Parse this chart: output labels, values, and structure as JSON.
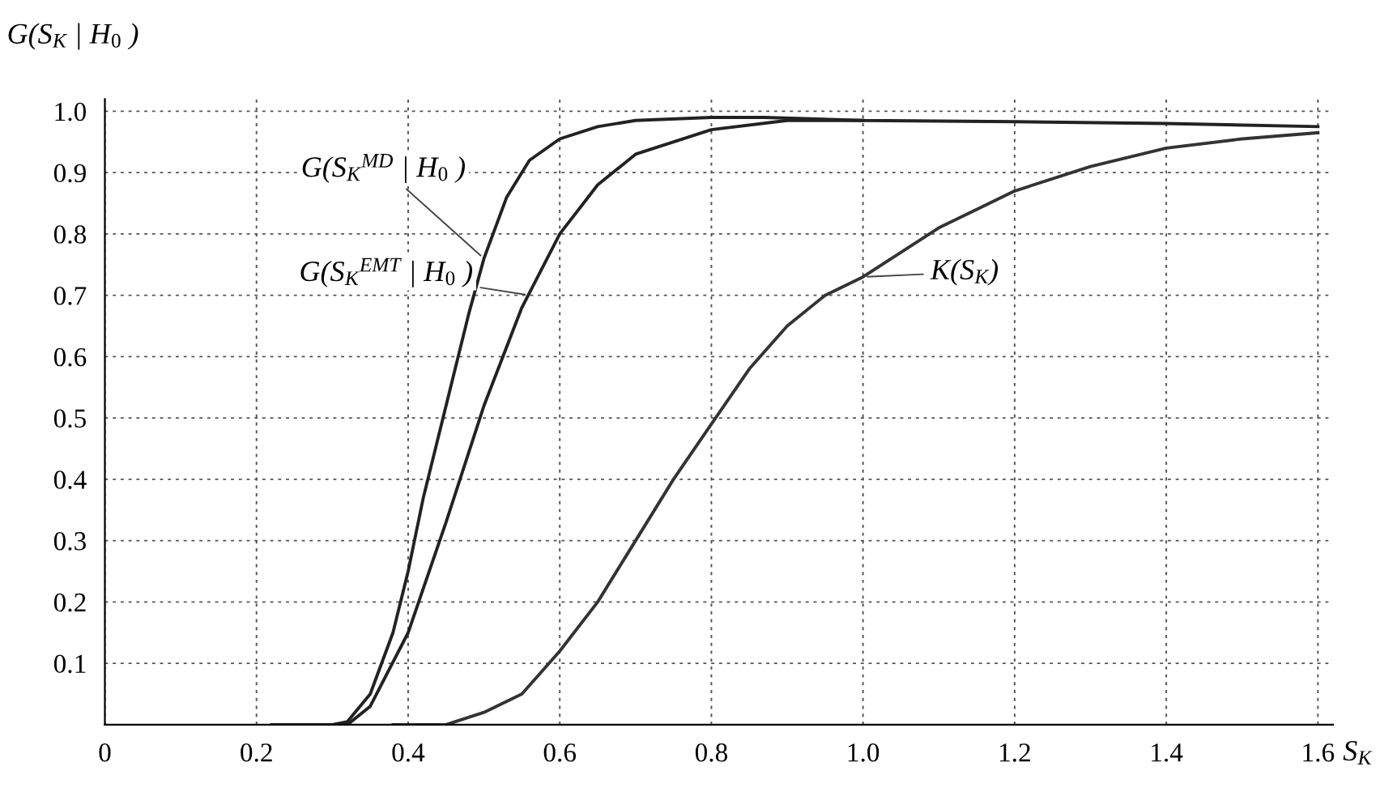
{
  "chart_data": {
    "type": "line",
    "xlabel": "S$_{K}$",
    "ylabel": "G(S$_{K}$ | H$_{0}$ )",
    "xlim": [
      0,
      1.62
    ],
    "ylim": [
      0,
      1.02
    ],
    "xticks": [
      0,
      0.2,
      0.4,
      0.6,
      0.8,
      {
        "value": 1.0,
        "label": "1.0"
      },
      1.2,
      1.4,
      1.6
    ],
    "yticks": [
      0.1,
      0.2,
      0.3,
      0.4,
      0.5,
      0.6,
      0.7,
      0.8,
      0.9,
      {
        "value": 1.0,
        "label": "1.0"
      }
    ],
    "grid": true,
    "line_style": "solid",
    "marker": "none",
    "series": [
      {
        "color": "#222222",
        "x": [
          0.22,
          0.3,
          0.32,
          0.35,
          0.38,
          0.4,
          0.42,
          0.45,
          0.48,
          0.5,
          0.53,
          0.56,
          0.6,
          0.65,
          0.7,
          0.8,
          0.87,
          1.0,
          1.2,
          1.4,
          1.6
        ],
        "values": [
          0,
          0,
          0.005,
          0.05,
          0.15,
          0.25,
          0.37,
          0.52,
          0.67,
          0.76,
          0.86,
          0.92,
          0.955,
          0.975,
          0.985,
          0.99,
          0.99,
          0.985,
          0.983,
          0.98,
          0.975
        ]
      },
      {
        "color": "#222222",
        "x": [
          0.3,
          0.32,
          0.35,
          0.4,
          0.45,
          0.5,
          0.55,
          0.6,
          0.65,
          0.7,
          0.8,
          0.9,
          1.0
        ],
        "values": [
          0,
          0,
          0.03,
          0.15,
          0.33,
          0.52,
          0.68,
          0.8,
          0.88,
          0.93,
          0.97,
          0.985,
          0.985
        ]
      },
      {
        "color": "#333333",
        "x": [
          0.38,
          0.45,
          0.5,
          0.55,
          0.6,
          0.65,
          0.7,
          0.75,
          0.8,
          0.85,
          0.9,
          0.95,
          1.0,
          1.1,
          1.2,
          1.3,
          1.4,
          1.5,
          1.6
        ],
        "values": [
          0,
          0,
          0.02,
          0.05,
          0.12,
          0.2,
          0.3,
          0.4,
          0.49,
          0.58,
          0.65,
          0.7,
          0.73,
          0.81,
          0.87,
          0.91,
          0.94,
          0.955,
          0.965
        ]
      }
    ],
    "annotations": [
      {
        "text": "G(S$_{K}$$^{MD}$ | H$_{0}$ )",
        "x": 0.5,
        "y": 0.76
      },
      {
        "text": "G(S$_{K}$$^{EMT}$ | H$_{0}$ )",
        "x": 0.56,
        "y": 0.7
      },
      {
        "text": "K(S$_{K}$)",
        "x": 1.0,
        "y": 0.73
      }
    ]
  }
}
